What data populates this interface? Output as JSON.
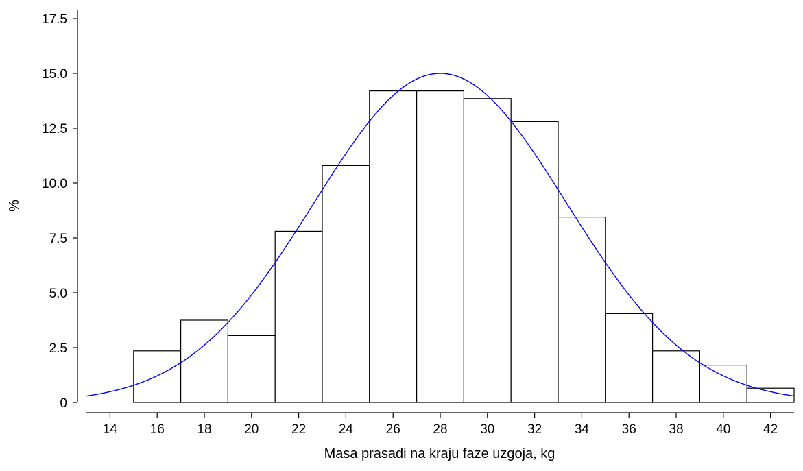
{
  "chart_data": {
    "type": "bar",
    "xlabel": "Masa prasadi na kraju faze uzgoja, kg",
    "ylabel": "%",
    "xlim": [
      13,
      43
    ],
    "ylim": [
      0,
      17.5
    ],
    "x_ticks": [
      14,
      16,
      18,
      20,
      22,
      24,
      26,
      28,
      30,
      32,
      34,
      36,
      38,
      40,
      42
    ],
    "x_tick_labels": [
      "14",
      "16",
      "18",
      "20",
      "22",
      "24",
      "26",
      "28",
      "30",
      "32",
      "34",
      "36",
      "38",
      "40",
      "42"
    ],
    "y_ticks": [
      0,
      2.5,
      5.0,
      7.5,
      10.0,
      12.5,
      15.0,
      17.5
    ],
    "y_tick_labels": [
      "0",
      "2.5",
      "5.0",
      "7.5",
      "10.0",
      "12.5",
      "15.0",
      "17.5"
    ],
    "bins": [
      {
        "from": 15,
        "to": 17,
        "value": 2.35
      },
      {
        "from": 17,
        "to": 19,
        "value": 3.75
      },
      {
        "from": 19,
        "to": 21,
        "value": 3.05
      },
      {
        "from": 21,
        "to": 23,
        "value": 7.8
      },
      {
        "from": 23,
        "to": 25,
        "value": 10.8
      },
      {
        "from": 25,
        "to": 27,
        "value": 14.2
      },
      {
        "from": 27,
        "to": 29,
        "value": 14.2
      },
      {
        "from": 29,
        "to": 31,
        "value": 13.85
      },
      {
        "from": 31,
        "to": 33,
        "value": 12.8
      },
      {
        "from": 33,
        "to": 35,
        "value": 8.45
      },
      {
        "from": 35,
        "to": 37,
        "value": 4.05
      },
      {
        "from": 37,
        "to": 39,
        "value": 2.35
      },
      {
        "from": 39,
        "to": 41,
        "value": 1.7
      },
      {
        "from": 41,
        "to": 43,
        "value": 0.65
      }
    ],
    "fit_curve": {
      "type": "normal",
      "mean": 28,
      "sd": 5.35,
      "peak": 15.0,
      "color": "#0000ff"
    },
    "bar_color": "#ffffff",
    "bar_stroke": "#000000",
    "grid": false
  }
}
